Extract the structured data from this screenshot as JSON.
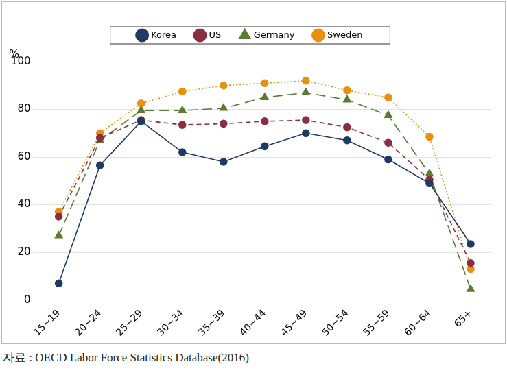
{
  "chart_data": {
    "type": "line",
    "y_label": "%",
    "source": "자료 : OECD Labor Force Statistics Database(2016)",
    "categories": [
      "15~19",
      "20~24",
      "25~29",
      "30~34",
      "35~39",
      "40~44",
      "45~49",
      "50~54",
      "55~59",
      "60~64",
      "65+"
    ],
    "series": [
      {
        "name": "Korea",
        "color": "#1f3b63",
        "marker": "circle",
        "line_style": "solid",
        "values": [
          7,
          56.5,
          75,
          62,
          58,
          64.5,
          70,
          67,
          59,
          49,
          23.5
        ]
      },
      {
        "name": "US",
        "color": "#8b2f3f",
        "marker": "circle",
        "line_style": "dashed",
        "values": [
          35,
          68,
          75.5,
          73.5,
          74,
          75,
          75.5,
          72.5,
          66,
          50.5,
          15.5
        ]
      },
      {
        "name": "Germany",
        "color": "#5b7a35",
        "marker": "triangle",
        "line_style": "longdash",
        "values": [
          27,
          67,
          79.5,
          79.5,
          80.5,
          85,
          87,
          84,
          77.5,
          53,
          4.5
        ]
      },
      {
        "name": "Sweden",
        "color": "#e8900f",
        "marker": "circle",
        "line_style": "dotted",
        "values": [
          37,
          70,
          82.5,
          87.5,
          90,
          91,
          92,
          88,
          85,
          68.5,
          13
        ]
      }
    ],
    "ylim": [
      0,
      100
    ],
    "yticks": [
      0,
      20,
      40,
      60,
      80,
      100
    ],
    "grid": true,
    "legend": "top"
  }
}
